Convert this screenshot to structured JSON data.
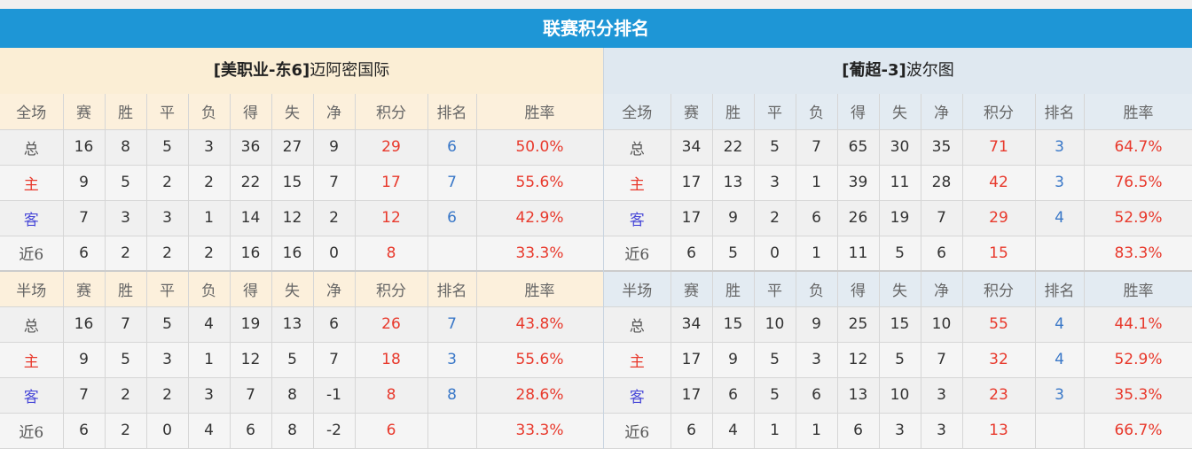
{
  "title": "联赛积分排名",
  "colors": {
    "header": "#1e96d6",
    "points": "#e8392c",
    "rank": "#3a78c8"
  },
  "columns_full": [
    "全场",
    "赛",
    "胜",
    "平",
    "负",
    "得",
    "失",
    "净",
    "积分",
    "排名",
    "胜率"
  ],
  "columns_half": [
    "半场",
    "赛",
    "胜",
    "平",
    "负",
    "得",
    "失",
    "净",
    "积分",
    "排名",
    "胜率"
  ],
  "teams": [
    {
      "name_prefix": "[美职业-东",
      "name_num": "6]",
      "name": "迈阿密国际",
      "full": [
        [
          "总",
          "16",
          "8",
          "5",
          "3",
          "36",
          "27",
          "9",
          "29",
          "6",
          "50.0%"
        ],
        [
          "主",
          "9",
          "5",
          "2",
          "2",
          "22",
          "15",
          "7",
          "17",
          "7",
          "55.6%"
        ],
        [
          "客",
          "7",
          "3",
          "3",
          "1",
          "14",
          "12",
          "2",
          "12",
          "6",
          "42.9%"
        ],
        [
          "近6",
          "6",
          "2",
          "2",
          "2",
          "16",
          "16",
          "0",
          "8",
          "",
          "33.3%"
        ]
      ],
      "half": [
        [
          "总",
          "16",
          "7",
          "5",
          "4",
          "19",
          "13",
          "6",
          "26",
          "7",
          "43.8%"
        ],
        [
          "主",
          "9",
          "5",
          "3",
          "1",
          "12",
          "5",
          "7",
          "18",
          "3",
          "55.6%"
        ],
        [
          "客",
          "7",
          "2",
          "2",
          "3",
          "7",
          "8",
          "-1",
          "8",
          "8",
          "28.6%"
        ],
        [
          "近6",
          "6",
          "2",
          "0",
          "4",
          "6",
          "8",
          "-2",
          "6",
          "",
          "33.3%"
        ]
      ]
    },
    {
      "name_prefix": "[葡超-",
      "name_num": "3]",
      "name": "波尔图",
      "full": [
        [
          "总",
          "34",
          "22",
          "5",
          "7",
          "65",
          "30",
          "35",
          "71",
          "3",
          "64.7%"
        ],
        [
          "主",
          "17",
          "13",
          "3",
          "1",
          "39",
          "11",
          "28",
          "42",
          "3",
          "76.5%"
        ],
        [
          "客",
          "17",
          "9",
          "2",
          "6",
          "26",
          "19",
          "7",
          "29",
          "4",
          "52.9%"
        ],
        [
          "近6",
          "6",
          "5",
          "0",
          "1",
          "11",
          "5",
          "6",
          "15",
          "",
          "83.3%"
        ]
      ],
      "half": [
        [
          "总",
          "34",
          "15",
          "10",
          "9",
          "25",
          "15",
          "10",
          "55",
          "4",
          "44.1%"
        ],
        [
          "主",
          "17",
          "9",
          "5",
          "3",
          "12",
          "5",
          "7",
          "32",
          "4",
          "52.9%"
        ],
        [
          "客",
          "17",
          "6",
          "5",
          "6",
          "13",
          "10",
          "3",
          "23",
          "3",
          "35.3%"
        ],
        [
          "近6",
          "6",
          "4",
          "1",
          "1",
          "6",
          "3",
          "3",
          "13",
          "",
          "66.7%"
        ]
      ]
    }
  ]
}
